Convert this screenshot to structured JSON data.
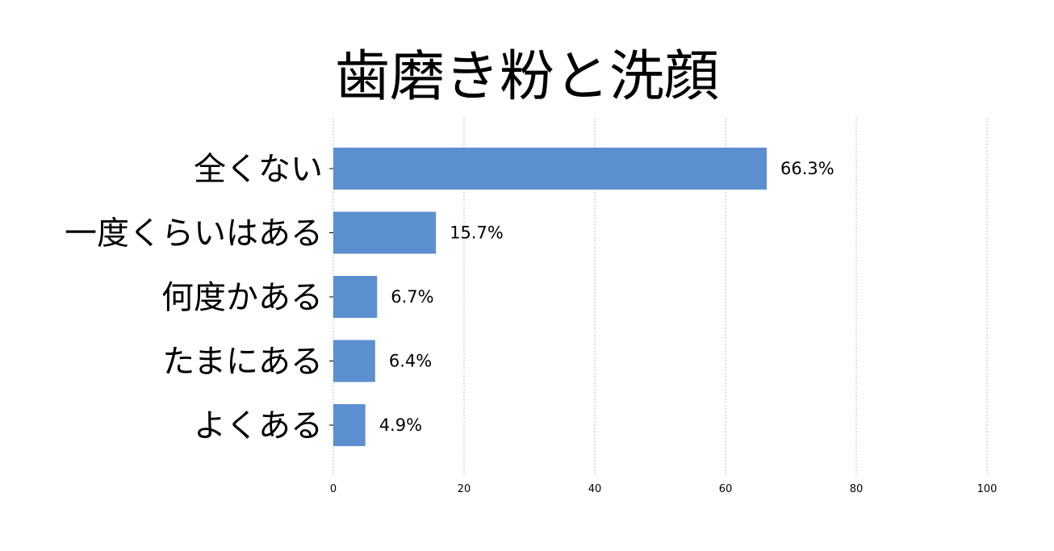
{
  "chart_data": {
    "type": "bar",
    "orientation": "horizontal",
    "title": "歯磨き粉と洗顔",
    "categories": [
      "全くない",
      "一度くらいはある",
      "何度かある",
      "たまにある",
      "よくある"
    ],
    "values": [
      66.3,
      15.7,
      6.7,
      6.4,
      4.9
    ],
    "value_labels": [
      "66.3%",
      "15.7%",
      "6.7%",
      "6.4%",
      "4.9%"
    ],
    "xlim": [
      0,
      100
    ],
    "xticks": [
      0,
      20,
      40,
      60,
      80,
      100
    ],
    "xtick_labels": [
      "0",
      "20",
      "40",
      "60",
      "80",
      "100"
    ],
    "grid": true,
    "bar_color": "#5b8fd0"
  }
}
